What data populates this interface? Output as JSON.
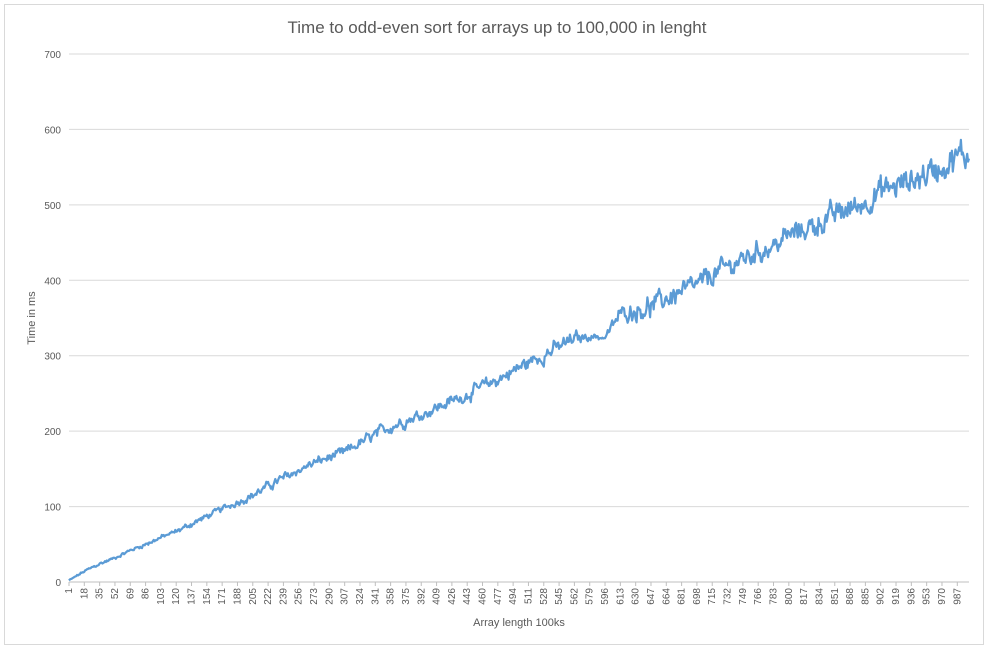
{
  "chart_data": {
    "type": "line",
    "title": "Time to odd-even sort for arrays up to 100,000 in lenght",
    "xlabel": "Array length  100ks",
    "ylabel": "Time in ms",
    "ylim": [
      0,
      700
    ],
    "yticks": [
      0,
      100,
      200,
      300,
      400,
      500,
      600,
      700
    ],
    "xlim": [
      1,
      1000
    ],
    "xticks": [
      1,
      18,
      35,
      52,
      69,
      86,
      103,
      120,
      137,
      154,
      171,
      188,
      205,
      222,
      239,
      256,
      273,
      290,
      307,
      324,
      341,
      358,
      375,
      392,
      409,
      426,
      443,
      460,
      477,
      494,
      511,
      528,
      545,
      562,
      579,
      596,
      613,
      630,
      647,
      664,
      681,
      698,
      715,
      732,
      749,
      766,
      783,
      800,
      817,
      834,
      851,
      868,
      885,
      902,
      919,
      936,
      953,
      970,
      987
    ],
    "grid": true,
    "legend": "none",
    "series": [
      {
        "color": "#5b9bd5",
        "x": [
          1,
          18,
          35,
          52,
          69,
          86,
          103,
          120,
          137,
          154,
          171,
          188,
          205,
          222,
          239,
          256,
          273,
          290,
          307,
          324,
          341,
          358,
          375,
          392,
          409,
          426,
          443,
          460,
          477,
          494,
          511,
          528,
          545,
          562,
          579,
          596,
          613,
          630,
          647,
          664,
          681,
          698,
          715,
          732,
          749,
          766,
          783,
          800,
          817,
          834,
          851,
          868,
          885,
          902,
          919,
          936,
          953,
          970,
          987,
          1000
        ],
        "y": [
          2,
          14,
          24,
          32,
          42,
          50,
          59,
          67,
          77,
          87,
          97,
          106,
          115,
          127,
          138,
          148,
          158,
          165,
          172,
          184,
          195,
          206,
          214,
          222,
          231,
          240,
          248,
          259,
          268,
          280,
          291,
          301,
          312,
          322,
          326,
          324,
          356,
          360,
          365,
          376,
          385,
          393,
          407,
          418,
          428,
          438,
          445,
          460,
          467,
          476,
          487,
          495,
          503,
          518,
          525,
          532,
          542,
          552,
          563,
          567
        ],
        "noise_amplitude": [
          1,
          2,
          2,
          2,
          2,
          3,
          3,
          3,
          4,
          4,
          4,
          5,
          5,
          6,
          6,
          6,
          6,
          6,
          7,
          7,
          8,
          8,
          8,
          8,
          8,
          8,
          8,
          9,
          9,
          10,
          10,
          10,
          10,
          10,
          5,
          4,
          10,
          12,
          14,
          14,
          14,
          14,
          14,
          14,
          14,
          14,
          14,
          14,
          14,
          16,
          16,
          16,
          16,
          18,
          18,
          18,
          20,
          20,
          20,
          20
        ]
      }
    ]
  }
}
